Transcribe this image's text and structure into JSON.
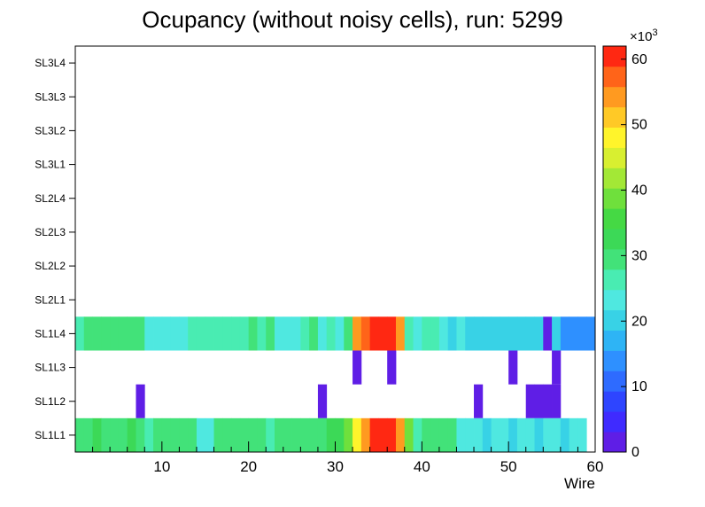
{
  "chart_data": {
    "type": "heatmap",
    "title": "Ocupancy (without noisy cells), run: 5299",
    "xlabel": "Wire",
    "x_ticks": [
      10,
      20,
      30,
      40,
      50,
      60
    ],
    "x_minor_step": 2,
    "n_wires": 60,
    "zmax": 62,
    "values_unit": "counts x 10^3",
    "z_scale_label": "×10",
    "z_scale_exp": "3",
    "colorbar_ticks": [
      0,
      10,
      20,
      30,
      40,
      50,
      60
    ],
    "legend_position": "right-colorbar",
    "grid": false,
    "palette": [
      "#5f1ee6",
      "#3f2bff",
      "#2e45ff",
      "#2e6bff",
      "#2e90ff",
      "#2eb4f5",
      "#38d2e6",
      "#4fe8e0",
      "#49ecb2",
      "#42e279",
      "#3cd957",
      "#45d944",
      "#6fe03c",
      "#a3e836",
      "#d8ef30",
      "#fff42b",
      "#ffc926",
      "#ff9a20",
      "#ff6419",
      "#ff2812"
    ],
    "rows": [
      {
        "label": "SL3L4",
        "values": null
      },
      {
        "label": "SL3L3",
        "values": null
      },
      {
        "label": "SL3L2",
        "values": null
      },
      {
        "label": "SL3L1",
        "values": null
      },
      {
        "label": "SL2L4",
        "values": null
      },
      {
        "label": "SL2L3",
        "values": null
      },
      {
        "label": "SL2L2",
        "values": null
      },
      {
        "label": "SL2L1",
        "values": null
      },
      {
        "label": "SL1L4",
        "values": [
          27,
          29,
          28,
          29,
          30,
          29,
          28,
          29,
          24,
          24,
          23,
          24,
          24,
          25,
          26,
          25,
          26,
          25,
          26,
          25,
          28,
          27,
          28,
          23,
          23,
          24,
          27,
          28,
          23,
          27,
          23,
          28,
          54,
          58,
          60,
          61,
          59,
          54,
          27,
          24,
          26,
          25,
          22,
          21,
          22,
          21,
          20,
          20,
          19,
          20,
          20,
          19,
          20,
          20,
          3,
          20,
          14,
          14,
          13,
          14
        ]
      },
      {
        "label": "SL1L3",
        "values": [
          null,
          null,
          null,
          null,
          null,
          null,
          null,
          null,
          null,
          null,
          null,
          null,
          null,
          null,
          null,
          null,
          null,
          null,
          null,
          null,
          null,
          null,
          null,
          null,
          null,
          null,
          null,
          null,
          null,
          null,
          null,
          null,
          2,
          null,
          null,
          null,
          2,
          null,
          null,
          null,
          null,
          null,
          null,
          null,
          null,
          null,
          null,
          null,
          null,
          null,
          2,
          null,
          null,
          null,
          null,
          2,
          null,
          null,
          null,
          null
        ]
      },
      {
        "label": "SL1L2",
        "values": [
          null,
          null,
          null,
          null,
          null,
          null,
          null,
          2,
          null,
          null,
          null,
          null,
          null,
          null,
          null,
          null,
          null,
          null,
          null,
          null,
          null,
          null,
          null,
          null,
          null,
          null,
          null,
          null,
          2,
          null,
          null,
          null,
          null,
          null,
          null,
          null,
          null,
          null,
          null,
          null,
          null,
          null,
          null,
          null,
          null,
          null,
          2,
          null,
          null,
          null,
          null,
          null,
          3,
          3,
          3,
          3,
          null,
          null,
          null,
          null
        ]
      },
      {
        "label": "SL1L1",
        "values": [
          30,
          30,
          31,
          30,
          29,
          30,
          31,
          30,
          25,
          30,
          30,
          29,
          30,
          30,
          24,
          24,
          29,
          30,
          30,
          29,
          30,
          30,
          26,
          30,
          29,
          30,
          30,
          29,
          30,
          31,
          32,
          40,
          48,
          54,
          59,
          61,
          59,
          53,
          40,
          26,
          29,
          30,
          29,
          28,
          23,
          22,
          22,
          21,
          22,
          22,
          21,
          22,
          22,
          21,
          22,
          22,
          21,
          22,
          22,
          null
        ]
      }
    ]
  }
}
